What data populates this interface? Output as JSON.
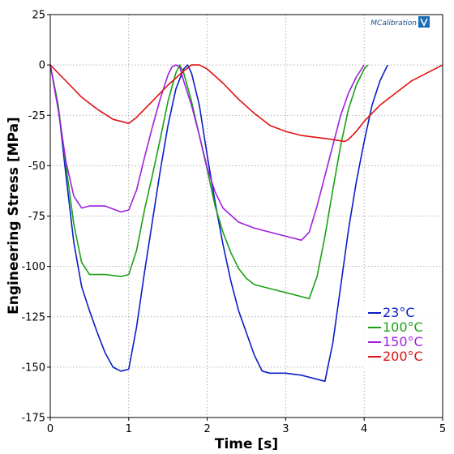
{
  "brand": {
    "name": "MCalibration",
    "icon": "mcalibration-logo-icon",
    "color": "#1a6db5"
  },
  "chart_data": {
    "type": "line",
    "xlabel": "Time [s]",
    "ylabel": "Engineering Stress [MPa]",
    "xlim": [
      0,
      5
    ],
    "ylim": [
      -175,
      25
    ],
    "x_ticks": [
      "0",
      "1",
      "2",
      "3",
      "4",
      "5"
    ],
    "y_ticks": [
      "25",
      "0",
      "-25",
      "-50",
      "-75",
      "-100",
      "-125",
      "-150",
      "-175"
    ],
    "grid": true,
    "legend_position": "bottom-right",
    "series": [
      {
        "name": "23°C",
        "color": "#0a1ec8",
        "points": [
          [
            0,
            0
          ],
          [
            0.1,
            -20
          ],
          [
            0.2,
            -55
          ],
          [
            0.3,
            -88
          ],
          [
            0.4,
            -110
          ],
          [
            0.5,
            -122
          ],
          [
            0.6,
            -133
          ],
          [
            0.7,
            -143
          ],
          [
            0.8,
            -150
          ],
          [
            0.9,
            -152
          ],
          [
            1.0,
            -151
          ],
          [
            1.1,
            -130
          ],
          [
            1.2,
            -103
          ],
          [
            1.3,
            -78
          ],
          [
            1.4,
            -53
          ],
          [
            1.5,
            -30
          ],
          [
            1.6,
            -12
          ],
          [
            1.7,
            -2
          ],
          [
            1.75,
            0
          ],
          [
            1.8,
            -4
          ],
          [
            1.9,
            -20
          ],
          [
            2.0,
            -45
          ],
          [
            2.1,
            -68
          ],
          [
            2.2,
            -89
          ],
          [
            2.3,
            -107
          ],
          [
            2.4,
            -122
          ],
          [
            2.5,
            -133
          ],
          [
            2.6,
            -144
          ],
          [
            2.7,
            -152
          ],
          [
            2.8,
            -153
          ],
          [
            3.0,
            -153
          ],
          [
            3.2,
            -154
          ],
          [
            3.4,
            -156
          ],
          [
            3.5,
            -157
          ],
          [
            3.6,
            -138
          ],
          [
            3.7,
            -110
          ],
          [
            3.8,
            -82
          ],
          [
            3.9,
            -58
          ],
          [
            4.0,
            -38
          ],
          [
            4.1,
            -20
          ],
          [
            4.2,
            -8
          ],
          [
            4.3,
            0
          ]
        ]
      },
      {
        "name": "100°C",
        "color": "#1aa015",
        "points": [
          [
            0,
            0
          ],
          [
            0.1,
            -20
          ],
          [
            0.2,
            -50
          ],
          [
            0.3,
            -79
          ],
          [
            0.4,
            -98
          ],
          [
            0.5,
            -104
          ],
          [
            0.7,
            -104
          ],
          [
            0.9,
            -105
          ],
          [
            1.0,
            -104
          ],
          [
            1.1,
            -92
          ],
          [
            1.2,
            -72
          ],
          [
            1.3,
            -55
          ],
          [
            1.4,
            -37
          ],
          [
            1.5,
            -18
          ],
          [
            1.6,
            -4
          ],
          [
            1.65,
            0
          ],
          [
            1.7,
            -4
          ],
          [
            1.8,
            -18
          ],
          [
            1.9,
            -35
          ],
          [
            2.0,
            -52
          ],
          [
            2.1,
            -70
          ],
          [
            2.2,
            -83
          ],
          [
            2.3,
            -93
          ],
          [
            2.4,
            -101
          ],
          [
            2.5,
            -106
          ],
          [
            2.6,
            -109
          ],
          [
            2.8,
            -111
          ],
          [
            3.0,
            -113
          ],
          [
            3.2,
            -115
          ],
          [
            3.3,
            -116
          ],
          [
            3.4,
            -105
          ],
          [
            3.5,
            -85
          ],
          [
            3.6,
            -62
          ],
          [
            3.7,
            -40
          ],
          [
            3.8,
            -22
          ],
          [
            3.9,
            -10
          ],
          [
            4.0,
            -2
          ],
          [
            4.05,
            0
          ]
        ]
      },
      {
        "name": "150°C",
        "color": "#a020e0",
        "points": [
          [
            0,
            0
          ],
          [
            0.1,
            -22
          ],
          [
            0.2,
            -48
          ],
          [
            0.3,
            -65
          ],
          [
            0.4,
            -71
          ],
          [
            0.5,
            -70
          ],
          [
            0.7,
            -70
          ],
          [
            0.9,
            -73
          ],
          [
            1.0,
            -72
          ],
          [
            1.1,
            -62
          ],
          [
            1.2,
            -46
          ],
          [
            1.3,
            -31
          ],
          [
            1.4,
            -17
          ],
          [
            1.5,
            -5
          ],
          [
            1.55,
            -1
          ],
          [
            1.6,
            0
          ],
          [
            1.65,
            -1
          ],
          [
            1.7,
            -8
          ],
          [
            1.8,
            -20
          ],
          [
            1.9,
            -35
          ],
          [
            2.0,
            -51
          ],
          [
            2.1,
            -63
          ],
          [
            2.2,
            -71
          ],
          [
            2.4,
            -78
          ],
          [
            2.6,
            -81
          ],
          [
            2.8,
            -83
          ],
          [
            3.0,
            -85
          ],
          [
            3.2,
            -87
          ],
          [
            3.3,
            -83
          ],
          [
            3.4,
            -70
          ],
          [
            3.5,
            -55
          ],
          [
            3.6,
            -40
          ],
          [
            3.7,
            -25
          ],
          [
            3.8,
            -14
          ],
          [
            3.9,
            -6
          ],
          [
            4.0,
            0
          ]
        ]
      },
      {
        "name": "200°C",
        "color": "#e01010",
        "points": [
          [
            0,
            0
          ],
          [
            0.2,
            -8
          ],
          [
            0.4,
            -16
          ],
          [
            0.6,
            -22
          ],
          [
            0.8,
            -27
          ],
          [
            1.0,
            -29
          ],
          [
            1.1,
            -26
          ],
          [
            1.3,
            -18
          ],
          [
            1.5,
            -10
          ],
          [
            1.7,
            -3
          ],
          [
            1.8,
            0
          ],
          [
            1.9,
            0
          ],
          [
            2.0,
            -2
          ],
          [
            2.2,
            -9
          ],
          [
            2.4,
            -17
          ],
          [
            2.6,
            -24
          ],
          [
            2.8,
            -30
          ],
          [
            3.0,
            -33
          ],
          [
            3.2,
            -35
          ],
          [
            3.4,
            -36
          ],
          [
            3.6,
            -37
          ],
          [
            3.75,
            -38
          ],
          [
            3.8,
            -37
          ],
          [
            3.9,
            -33
          ],
          [
            4.0,
            -28
          ],
          [
            4.2,
            -20
          ],
          [
            4.4,
            -14
          ],
          [
            4.6,
            -8
          ],
          [
            4.8,
            -4
          ],
          [
            5.0,
            0
          ]
        ]
      }
    ]
  }
}
